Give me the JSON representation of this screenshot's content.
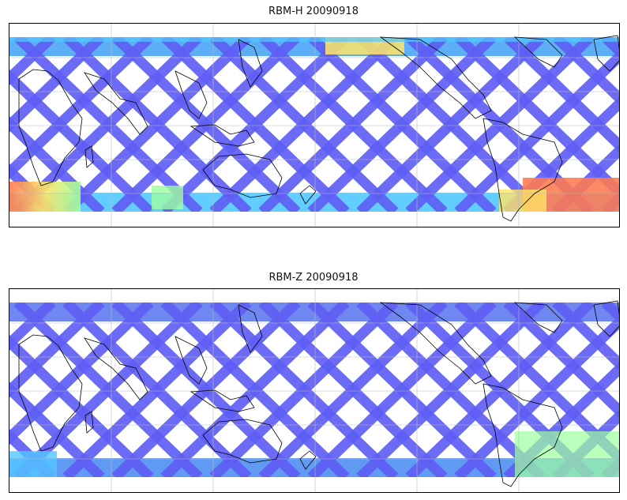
{
  "panels": [
    {
      "title": "RBM-H 20090918",
      "variant": "H"
    },
    {
      "title": "RBM-Z 20090918",
      "variant": "Z"
    }
  ],
  "map": {
    "projection": "cylindrical",
    "gridlines": true,
    "data_coverage": "satellite swath band, latitude approx 70N to 70S",
    "colormap": "jet (blue-low, red-high)",
    "background_color": "#ffffff",
    "coastline_color": "#000000"
  },
  "colors": {
    "low": "#5f5ff5",
    "mid_low": "#52c8ff",
    "mid": "#9effa0",
    "mid_high": "#ffe566",
    "high": "#ff7a50"
  }
}
